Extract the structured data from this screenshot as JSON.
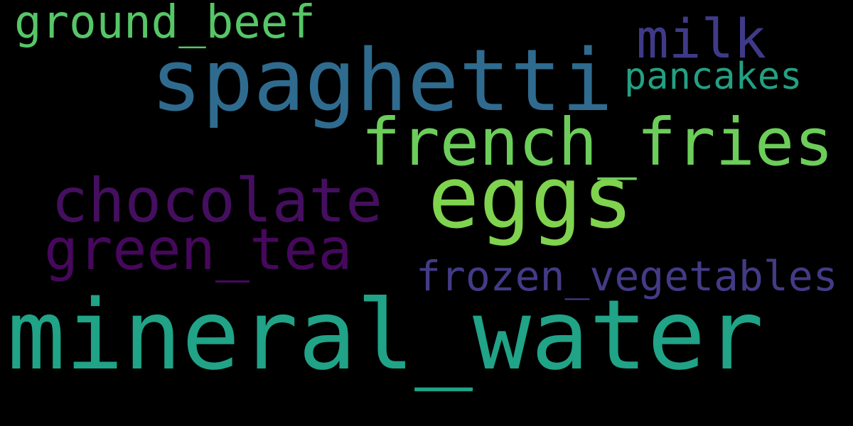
{
  "background_color": "#000000",
  "words": [
    {
      "text": "mineral_water",
      "color": "#20a386"
    },
    {
      "text": "spaghetti",
      "color": "#2f6b8e"
    },
    {
      "text": "eggs",
      "color": "#7fd34e"
    },
    {
      "text": "french_fries",
      "color": "#6ccd5a"
    },
    {
      "text": "chocolate",
      "color": "#440f5e"
    },
    {
      "text": "green_tea",
      "color": "#46085c"
    },
    {
      "text": "milk",
      "color": "#3f3a88"
    },
    {
      "text": "ground_beef",
      "color": "#56c667"
    },
    {
      "text": "frozen_vegetables",
      "color": "#433b86"
    },
    {
      "text": "pancakes",
      "color": "#23a083"
    }
  ]
}
